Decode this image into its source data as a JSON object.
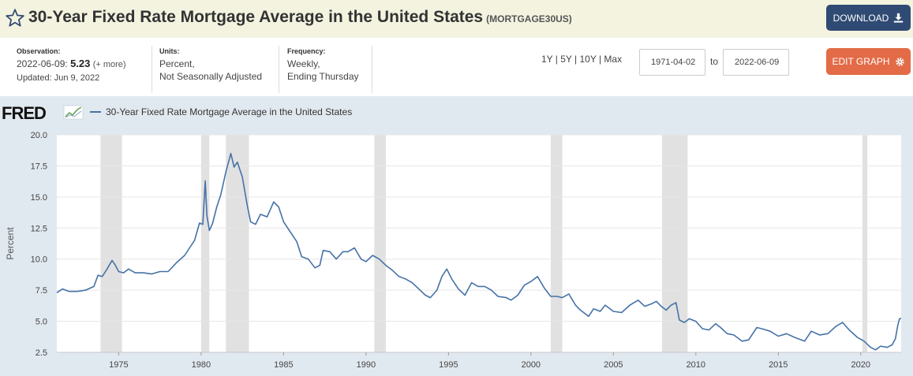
{
  "header": {
    "title": "30-Year Fixed Rate Mortgage Average in the United States",
    "series_id": "(MORTGAGE30US)",
    "download_label": "DOWNLOAD",
    "edit_label": "EDIT GRAPH"
  },
  "info": {
    "observation_label": "Observation:",
    "observation_date": "2022-06-09:",
    "observation_value": "5.23",
    "observation_more": "(+ more)",
    "updated": "Updated: Jun 9, 2022",
    "units_label": "Units:",
    "units_line1": "Percent,",
    "units_line2": "Not Seasonally Adjusted",
    "frequency_label": "Frequency:",
    "frequency_line1": "Weekly,",
    "frequency_line2": "Ending Thursday"
  },
  "range": {
    "options": "1Y | 5Y | 10Y | Max",
    "start": "1971-04-02",
    "to": "to",
    "end": "2022-06-09"
  },
  "logo_text": "FRED",
  "colors": {
    "line": "#4572a7",
    "recession": "#e1e1e1",
    "header_bg": "#f3f3e0",
    "chart_bg": "#e1e9f0",
    "download": "#2f4a73",
    "edit": "#e36b47"
  },
  "icons": [
    "star-icon",
    "download-icon",
    "gear-icon",
    "fred-chart-icon"
  ],
  "chart_data": {
    "type": "line",
    "legend": "30-Year Fixed Rate Mortgage Average in the United States",
    "ylabel": "Percent",
    "xlabel": "",
    "xlim": [
      1971.25,
      2022.45
    ],
    "ylim": [
      2.5,
      20.0
    ],
    "yticks": [
      "2.5",
      "5.0",
      "7.5",
      "10.0",
      "12.5",
      "15.0",
      "17.5",
      "20.0"
    ],
    "xticks": [
      "1975",
      "1980",
      "1985",
      "1990",
      "1995",
      "2000",
      "2005",
      "2010",
      "2015",
      "2020"
    ],
    "grid": true,
    "recessions": [
      [
        1973.9,
        1975.2
      ],
      [
        1980.0,
        1980.5
      ],
      [
        1981.5,
        1982.9
      ],
      [
        1990.5,
        1991.2
      ],
      [
        2001.2,
        2001.9
      ],
      [
        2007.95,
        2009.5
      ],
      [
        2020.1,
        2020.4
      ]
    ],
    "series": [
      {
        "name": "30-Year Fixed Rate Mortgage Average in the United States",
        "x": [
          1971.25,
          1971.6,
          1972.0,
          1972.5,
          1973.0,
          1973.5,
          1973.75,
          1974.0,
          1974.3,
          1974.6,
          1974.8,
          1975.0,
          1975.3,
          1975.6,
          1976.0,
          1976.5,
          1977.0,
          1977.5,
          1978.0,
          1978.5,
          1979.0,
          1979.3,
          1979.6,
          1979.9,
          1980.1,
          1980.25,
          1980.35,
          1980.5,
          1980.7,
          1980.95,
          1981.2,
          1981.5,
          1981.8,
          1982.0,
          1982.2,
          1982.5,
          1982.8,
          1983.0,
          1983.3,
          1983.6,
          1984.0,
          1984.4,
          1984.7,
          1985.0,
          1985.4,
          1985.8,
          1986.1,
          1986.5,
          1986.9,
          1987.2,
          1987.4,
          1987.8,
          1988.2,
          1988.6,
          1988.9,
          1989.3,
          1989.7,
          1990.0,
          1990.4,
          1990.8,
          1991.2,
          1991.6,
          1992.0,
          1992.4,
          1992.8,
          1993.2,
          1993.6,
          1993.9,
          1994.3,
          1994.6,
          1994.9,
          1995.2,
          1995.6,
          1996.0,
          1996.4,
          1996.8,
          1997.2,
          1997.6,
          1998.0,
          1998.5,
          1998.8,
          1999.2,
          1999.6,
          2000.0,
          2000.4,
          2000.8,
          2001.2,
          2001.6,
          2001.9,
          2002.3,
          2002.7,
          2003.0,
          2003.5,
          2003.8,
          2004.2,
          2004.5,
          2005.0,
          2005.5,
          2006.0,
          2006.5,
          2006.9,
          2007.3,
          2007.6,
          2007.9,
          2008.2,
          2008.5,
          2008.8,
          2009.0,
          2009.3,
          2009.6,
          2010.0,
          2010.4,
          2010.8,
          2011.2,
          2011.5,
          2011.9,
          2012.3,
          2012.8,
          2013.2,
          2013.7,
          2014.0,
          2014.5,
          2015.0,
          2015.5,
          2016.0,
          2016.6,
          2017.0,
          2017.5,
          2018.0,
          2018.5,
          2018.9,
          2019.3,
          2019.8,
          2020.2,
          2020.6,
          2020.9,
          2021.2,
          2021.6,
          2021.9,
          2022.1,
          2022.25,
          2022.35,
          2022.45
        ],
        "values": [
          7.3,
          7.6,
          7.4,
          7.4,
          7.5,
          7.8,
          8.7,
          8.6,
          9.2,
          9.9,
          9.5,
          9.0,
          8.9,
          9.2,
          8.9,
          8.9,
          8.8,
          9.0,
          9.0,
          9.7,
          10.3,
          10.9,
          11.5,
          12.9,
          12.8,
          16.3,
          13.5,
          12.3,
          12.9,
          14.2,
          15.2,
          17.0,
          18.5,
          17.4,
          17.8,
          16.6,
          14.3,
          13.0,
          12.8,
          13.6,
          13.4,
          14.6,
          14.2,
          13.0,
          12.2,
          11.4,
          10.2,
          10.0,
          9.3,
          9.5,
          10.7,
          10.6,
          10.0,
          10.6,
          10.6,
          10.9,
          10.0,
          9.8,
          10.3,
          10.0,
          9.5,
          9.1,
          8.6,
          8.4,
          8.1,
          7.6,
          7.1,
          6.9,
          7.5,
          8.6,
          9.2,
          8.4,
          7.6,
          7.1,
          8.1,
          7.8,
          7.8,
          7.5,
          7.0,
          6.9,
          6.7,
          7.1,
          7.9,
          8.2,
          8.6,
          7.7,
          7.0,
          7.0,
          6.9,
          7.2,
          6.3,
          5.9,
          5.4,
          6.0,
          5.8,
          6.3,
          5.8,
          5.7,
          6.3,
          6.7,
          6.2,
          6.4,
          6.6,
          6.2,
          5.9,
          6.3,
          6.5,
          5.1,
          4.9,
          5.2,
          5.0,
          4.4,
          4.3,
          4.8,
          4.5,
          4.0,
          3.9,
          3.4,
          3.5,
          4.5,
          4.4,
          4.2,
          3.8,
          4.0,
          3.7,
          3.4,
          4.2,
          3.9,
          4.0,
          4.6,
          4.9,
          4.3,
          3.7,
          3.4,
          2.9,
          2.7,
          3.0,
          2.9,
          3.1,
          3.6,
          4.7,
          5.2,
          5.23
        ]
      }
    ]
  }
}
